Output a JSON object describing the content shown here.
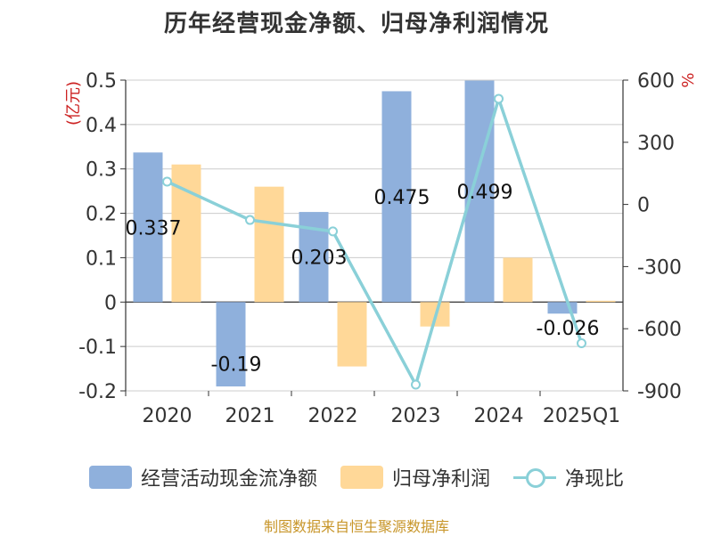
{
  "title": "历年经营现金净额、归母净利润情况",
  "source": "制图数据来自恒生聚源数据库",
  "colors": {
    "cash": "#8fb0dc",
    "profit": "#ffd898",
    "ratio": "#8ad0d8",
    "unit": "#cc2222"
  },
  "chart_data": {
    "type": "bar",
    "categories": [
      "2020",
      "2021",
      "2022",
      "2023",
      "2024",
      "2025Q1"
    ],
    "series": [
      {
        "name": "经营活动现金流净额",
        "type": "bar",
        "axis": "left",
        "values": [
          0.337,
          -0.19,
          0.203,
          0.475,
          0.499,
          -0.026
        ],
        "labels": [
          "0.337",
          "-0.19",
          "0.203",
          "0.475",
          "0.499",
          "-0.026"
        ]
      },
      {
        "name": "归母净利润",
        "type": "bar",
        "axis": "left",
        "values": [
          0.31,
          0.26,
          -0.145,
          -0.055,
          0.1,
          0.003
        ]
      },
      {
        "name": "净现比",
        "type": "line",
        "axis": "right",
        "values": [
          110,
          -75,
          -130,
          -870,
          510,
          -670
        ]
      }
    ],
    "left_axis": {
      "label": "(亿元)",
      "ylim": [
        -0.2,
        0.5
      ],
      "ticks": [
        "0.5",
        "0.4",
        "0.3",
        "0.2",
        "0.1",
        "0",
        "-0.1",
        "-0.2"
      ]
    },
    "right_axis": {
      "label": "%",
      "ylim": [
        -900,
        600
      ],
      "ticks": [
        "600",
        "300",
        "0",
        "-300",
        "-600",
        "-900"
      ]
    },
    "grid": true,
    "legend_position": "bottom"
  }
}
